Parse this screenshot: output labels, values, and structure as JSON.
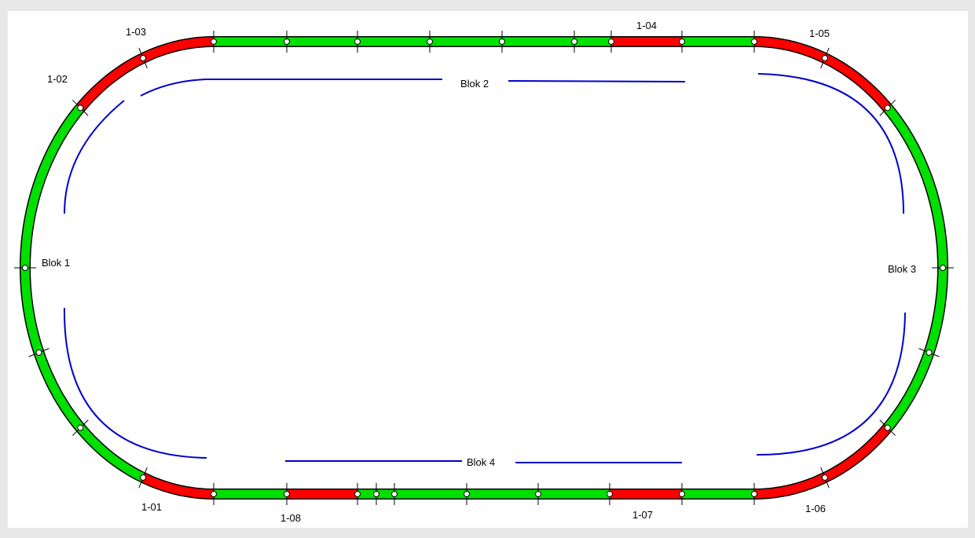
{
  "layout_panel": {
    "colors": {
      "background": "#ffffff",
      "frame": "#e8e8e8",
      "occupied": "#ff0000",
      "free": "#00e000",
      "block_outline": "#0000cc",
      "joint": "#000000"
    }
  },
  "blocks": [
    {
      "id": "blok-1",
      "label": "Blok 1"
    },
    {
      "id": "blok-2",
      "label": "Blok 2"
    },
    {
      "id": "blok-3",
      "label": "Blok 3"
    },
    {
      "id": "blok-4",
      "label": "Blok 4"
    }
  ],
  "sections": [
    {
      "id": "1-01",
      "label": "1-01",
      "state": "occupied"
    },
    {
      "id": "1-02",
      "label": "1-02",
      "state": "occupied"
    },
    {
      "id": "1-03",
      "label": "1-03",
      "state": "occupied"
    },
    {
      "id": "1-04",
      "label": "1-04",
      "state": "occupied"
    },
    {
      "id": "1-05",
      "label": "1-05",
      "state": "occupied"
    },
    {
      "id": "1-06",
      "label": "1-06",
      "state": "occupied"
    },
    {
      "id": "1-07",
      "label": "1-07",
      "state": "occupied"
    },
    {
      "id": "1-08",
      "label": "1-08",
      "state": "occupied"
    }
  ]
}
